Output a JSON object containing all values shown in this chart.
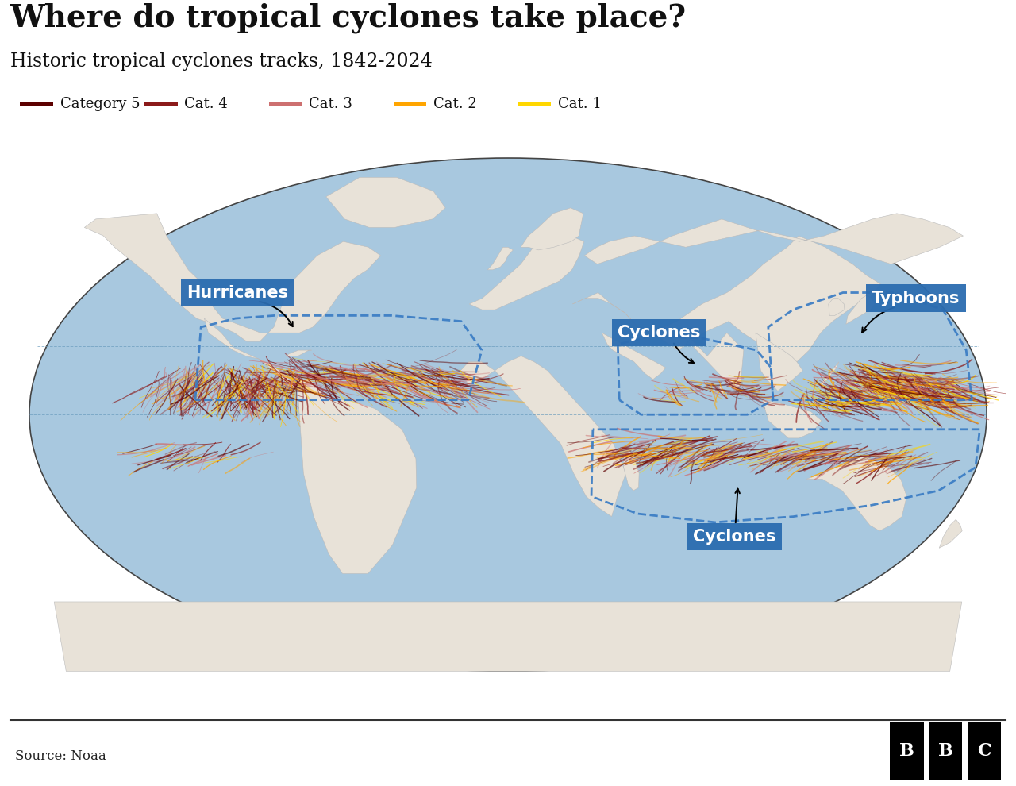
{
  "title": "Where do tropical cyclones take place?",
  "subtitle": "Historic tropical cyclones tracks, 1842-2024",
  "source": "Source: Noaa",
  "legend_items": [
    {
      "label": "Category 5",
      "color": "#5C0000"
    },
    {
      "label": "Cat. 4",
      "color": "#8B1A1A"
    },
    {
      "label": "Cat. 3",
      "color": "#CD7070"
    },
    {
      "label": "Cat. 2",
      "color": "#FFA500"
    },
    {
      "label": "Cat. 1",
      "color": "#FFD700"
    }
  ],
  "ocean_color": "#A8C8DF",
  "land_color": "#E8E2D8",
  "border_color": "#BBBBBB",
  "dashed_color": "#3A7CC4",
  "label_box_color": "#2B6CB0",
  "background": "#FFFFFF",
  "title_fs": 28,
  "subtitle_fs": 17,
  "legend_fs": 13,
  "source_fs": 12,
  "label_fs": 15,
  "cat_colors": {
    "5": "#5C0000",
    "4": "#8B1A1A",
    "3": "#CD7070",
    "2": "#FFA500",
    "1": "#FFD700"
  },
  "map_xlim": [
    -180,
    180
  ],
  "map_ylim": [
    -90,
    90
  ]
}
